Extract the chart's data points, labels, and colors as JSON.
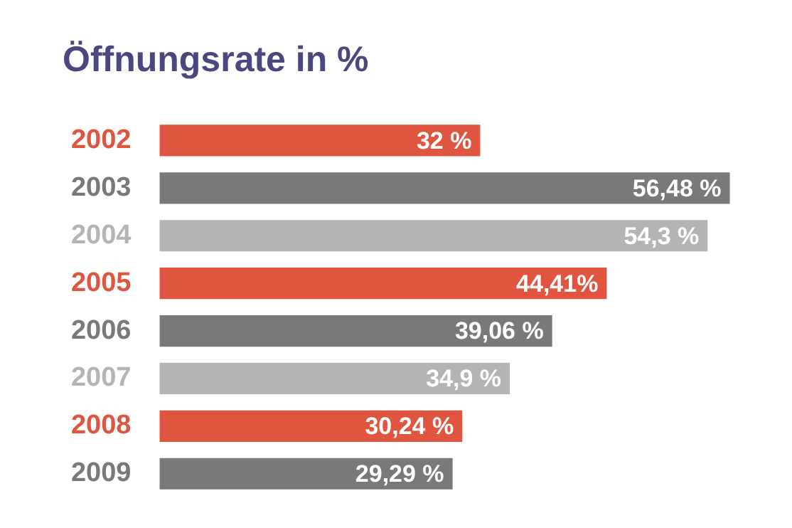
{
  "chart_data": {
    "type": "bar",
    "orientation": "horizontal",
    "title": "Öffnungsrate in %",
    "categories": [
      "2002",
      "2003",
      "2004",
      "2005",
      "2006",
      "2007",
      "2008",
      "2009"
    ],
    "values": [
      32,
      56.48,
      54.3,
      44.41,
      39.06,
      34.9,
      30.24,
      29.29
    ],
    "colors": [
      "#e05540",
      "#7b7879",
      "#b5b4b4",
      "#e05540",
      "#7b7879",
      "#b5b4b4",
      "#e05540",
      "#7b7879"
    ],
    "value_labels": [
      "32 %",
      "56,48 %",
      "54,3 %",
      "44,41%",
      "39,06 %",
      "34,9 %",
      "30,24 %",
      "29,29 %"
    ],
    "xlim": [
      0,
      57
    ],
    "tick_labels": "y",
    "grid": false,
    "legend": false
  }
}
